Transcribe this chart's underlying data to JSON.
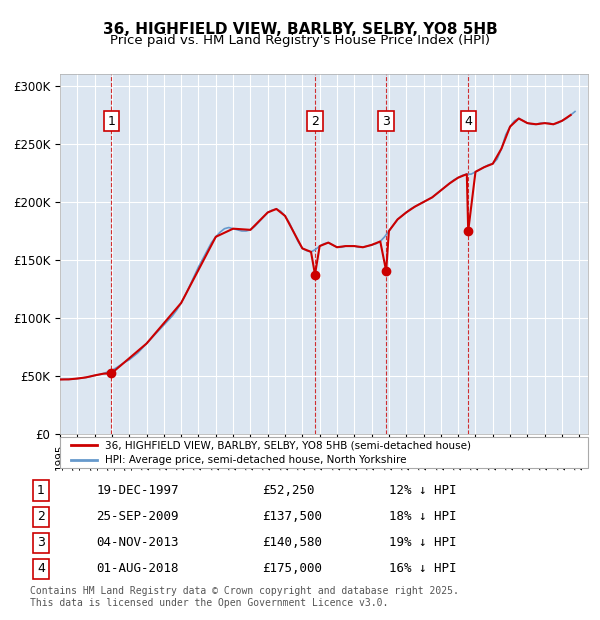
{
  "title": "36, HIGHFIELD VIEW, BARLBY, SELBY, YO8 5HB",
  "subtitle": "Price paid vs. HM Land Registry's House Price Index (HPI)",
  "ylabel_ticks": [
    "£0",
    "£50K",
    "£100K",
    "£150K",
    "£200K",
    "£250K",
    "£300K"
  ],
  "ytick_values": [
    0,
    50000,
    100000,
    150000,
    200000,
    250000,
    300000
  ],
  "ylim": [
    0,
    310000
  ],
  "xlim_start": 1995.0,
  "xlim_end": 2025.5,
  "sale_dates_num": [
    1997.97,
    2009.73,
    2013.84,
    2018.58
  ],
  "sale_prices": [
    52250,
    137500,
    140580,
    175000
  ],
  "sale_labels": [
    "1",
    "2",
    "3",
    "4"
  ],
  "sale_dates_str": [
    "19-DEC-1997",
    "25-SEP-2009",
    "04-NOV-2013",
    "01-AUG-2018"
  ],
  "sale_price_str": [
    "£52,250",
    "£137,500",
    "£140,580",
    "£175,000"
  ],
  "sale_hpi_str": [
    "12% ↓ HPI",
    "18% ↓ HPI",
    "19% ↓ HPI",
    "16% ↓ HPI"
  ],
  "red_line_color": "#cc0000",
  "blue_line_color": "#6699cc",
  "vline_color": "#cc0000",
  "background_color": "#dce6f1",
  "plot_bg_color": "#dce6f1",
  "footer_text": "Contains HM Land Registry data © Crown copyright and database right 2025.\nThis data is licensed under the Open Government Licence v3.0.",
  "legend_red": "36, HIGHFIELD VIEW, BARLBY, SELBY, YO8 5HB (semi-detached house)",
  "legend_blue": "HPI: Average price, semi-detached house, North Yorkshire",
  "hpi_years": [
    1995.0,
    1995.25,
    1995.5,
    1995.75,
    1996.0,
    1996.25,
    1996.5,
    1996.75,
    1997.0,
    1997.25,
    1997.5,
    1997.75,
    1998.0,
    1998.25,
    1998.5,
    1998.75,
    1999.0,
    1999.25,
    1999.5,
    1999.75,
    2000.0,
    2000.25,
    2000.5,
    2000.75,
    2001.0,
    2001.25,
    2001.5,
    2001.75,
    2002.0,
    2002.25,
    2002.5,
    2002.75,
    2003.0,
    2003.25,
    2003.5,
    2003.75,
    2004.0,
    2004.25,
    2004.5,
    2004.75,
    2005.0,
    2005.25,
    2005.5,
    2005.75,
    2006.0,
    2006.25,
    2006.5,
    2006.75,
    2007.0,
    2007.25,
    2007.5,
    2007.75,
    2008.0,
    2008.25,
    2008.5,
    2008.75,
    2009.0,
    2009.25,
    2009.5,
    2009.75,
    2010.0,
    2010.25,
    2010.5,
    2010.75,
    2011.0,
    2011.25,
    2011.5,
    2011.75,
    2012.0,
    2012.25,
    2012.5,
    2012.75,
    2013.0,
    2013.25,
    2013.5,
    2013.75,
    2014.0,
    2014.25,
    2014.5,
    2014.75,
    2015.0,
    2015.25,
    2015.5,
    2015.75,
    2016.0,
    2016.25,
    2016.5,
    2016.75,
    2017.0,
    2017.25,
    2017.5,
    2017.75,
    2018.0,
    2018.25,
    2018.5,
    2018.75,
    2019.0,
    2019.25,
    2019.5,
    2019.75,
    2020.0,
    2020.25,
    2020.5,
    2020.75,
    2021.0,
    2021.25,
    2021.5,
    2021.75,
    2022.0,
    2022.25,
    2022.5,
    2022.75,
    2023.0,
    2023.25,
    2023.5,
    2023.75,
    2024.0,
    2024.25,
    2024.5,
    2024.75
  ],
  "hpi_values": [
    47000,
    47200,
    47100,
    47300,
    47800,
    48200,
    48800,
    49500,
    50500,
    51200,
    52000,
    53500,
    55000,
    57000,
    59500,
    62000,
    64000,
    67000,
    70000,
    74000,
    78000,
    82000,
    86000,
    90000,
    94000,
    98000,
    102000,
    107000,
    113000,
    120000,
    128000,
    136000,
    144000,
    151000,
    158000,
    165000,
    170000,
    174000,
    177000,
    178000,
    177000,
    176000,
    175000,
    175000,
    176000,
    179000,
    183000,
    187000,
    191000,
    193000,
    194000,
    192000,
    188000,
    182000,
    174000,
    166000,
    160000,
    158000,
    157000,
    159000,
    162000,
    164000,
    165000,
    163000,
    161000,
    161000,
    162000,
    162000,
    162000,
    161000,
    161000,
    162000,
    163000,
    164000,
    166000,
    170000,
    175000,
    180000,
    185000,
    188000,
    191000,
    194000,
    196000,
    198000,
    200000,
    202000,
    204000,
    207000,
    210000,
    213000,
    216000,
    219000,
    221000,
    223000,
    224000,
    224000,
    226000,
    228000,
    230000,
    232000,
    233000,
    237000,
    246000,
    258000,
    265000,
    270000,
    272000,
    270000,
    268000,
    267000,
    267000,
    268000,
    268000,
    268000,
    267000,
    268000,
    270000,
    272000,
    275000,
    278000
  ],
  "red_line_years": [
    1995.0,
    1995.5,
    1996.0,
    1996.5,
    1997.0,
    1997.5,
    1997.97,
    2000.0,
    2002.0,
    2004.0,
    2005.0,
    2006.0,
    2007.0,
    2007.5,
    2008.0,
    2008.5,
    2009.0,
    2009.5,
    2009.73,
    2010.0,
    2010.5,
    2011.0,
    2011.5,
    2012.0,
    2012.5,
    2013.0,
    2013.5,
    2013.84,
    2014.0,
    2014.5,
    2015.0,
    2015.5,
    2016.0,
    2016.5,
    2017.0,
    2017.5,
    2018.0,
    2018.5,
    2018.58,
    2019.0,
    2019.5,
    2020.0,
    2020.5,
    2021.0,
    2021.5,
    2022.0,
    2022.5,
    2023.0,
    2023.5,
    2024.0,
    2024.5
  ],
  "red_line_values": [
    47000,
    47100,
    47800,
    48800,
    50500,
    52000,
    52250,
    78000,
    113000,
    170000,
    177000,
    176000,
    191000,
    194000,
    188000,
    174000,
    160000,
    157000,
    137500,
    162000,
    165000,
    161000,
    162000,
    162000,
    161000,
    163000,
    166000,
    140580,
    175000,
    185000,
    191000,
    196000,
    200000,
    204000,
    210000,
    216000,
    221000,
    224000,
    175000,
    226000,
    230000,
    233000,
    246000,
    265000,
    272000,
    268000,
    267000,
    268000,
    267000,
    270000,
    275000
  ]
}
